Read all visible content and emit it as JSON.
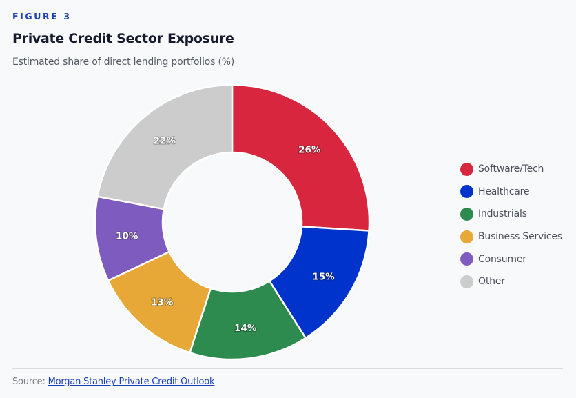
{
  "header": {
    "eyebrow": "FIGURE 3",
    "title": "Private Credit Sector Exposure",
    "subtitle": "Estimated share of direct lending portfolios (%)"
  },
  "chart_data": {
    "type": "pie",
    "variant": "donut",
    "title": "Private Credit Sector Exposure",
    "subtitle": "Estimated share of direct lending portfolios (%)",
    "categories": [
      "Software/Tech",
      "Healthcare",
      "Industrials",
      "Business Services",
      "Consumer",
      "Other"
    ],
    "values": [
      26,
      15,
      14,
      13,
      10,
      22
    ],
    "labels": [
      "26%",
      "15%",
      "14%",
      "13%",
      "10%",
      "22%"
    ],
    "colors": [
      "#d7263d",
      "#0033cc",
      "#2e8b50",
      "#e8a838",
      "#7e5bbf",
      "#cccccc"
    ],
    "start_angle": "12 o'clock, clockwise",
    "legend_position": "right"
  },
  "footer": {
    "source_prefix": "Source:",
    "source_link": "Morgan Stanley Private Credit Outlook"
  }
}
